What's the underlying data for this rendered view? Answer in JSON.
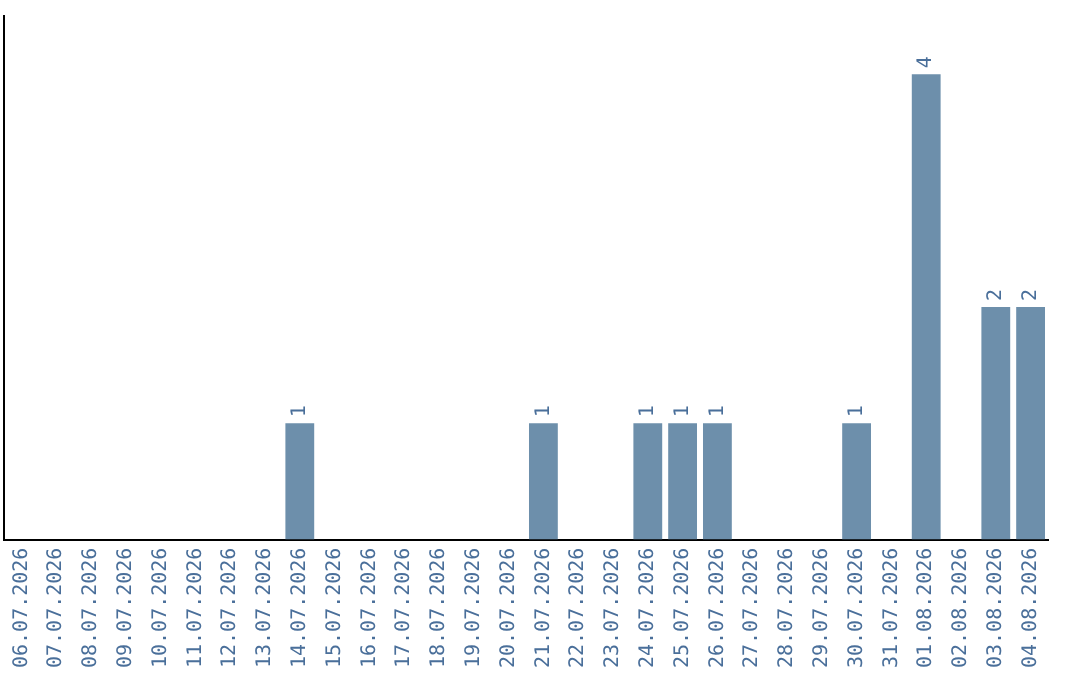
{
  "chart_data": {
    "type": "bar",
    "categories": [
      "06.07.2026",
      "07.07.2026",
      "08.07.2026",
      "09.07.2026",
      "10.07.2026",
      "11.07.2026",
      "12.07.2026",
      "13.07.2026",
      "14.07.2026",
      "15.07.2026",
      "16.07.2026",
      "17.07.2026",
      "18.07.2026",
      "19.07.2026",
      "20.07.2026",
      "21.07.2026",
      "22.07.2026",
      "23.07.2026",
      "24.07.2026",
      "25.07.2026",
      "26.07.2026",
      "27.07.2026",
      "28.07.2026",
      "29.07.2026",
      "30.07.2026",
      "31.07.2026",
      "01.08.2026",
      "02.08.2026",
      "03.08.2026",
      "04.08.2026"
    ],
    "values": [
      0,
      0,
      0,
      0,
      0,
      0,
      0,
      0,
      1,
      0,
      0,
      0,
      0,
      0,
      0,
      1,
      0,
      0,
      1,
      1,
      1,
      0,
      0,
      0,
      1,
      0,
      4,
      0,
      2,
      2
    ],
    "value_labels": [
      null,
      null,
      null,
      null,
      null,
      null,
      null,
      null,
      "1",
      null,
      null,
      null,
      null,
      null,
      null,
      "1",
      null,
      null,
      "1",
      "1",
      "1",
      null,
      null,
      null,
      "1",
      null,
      "4",
      null,
      "2",
      "2"
    ],
    "color": "#6d8fab",
    "grid": false,
    "legend": false,
    "tick_labels": "x"
  }
}
